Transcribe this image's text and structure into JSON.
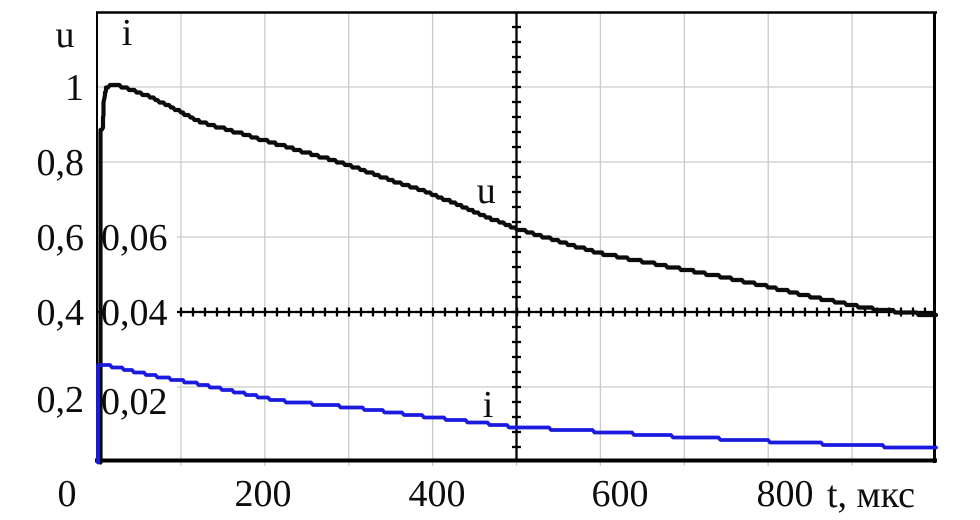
{
  "chart_data": {
    "type": "line",
    "title": "",
    "x_axis": {
      "title": "t, мкс",
      "tick_labels": [
        "0",
        "200",
        "400",
        "600",
        "800"
      ],
      "tick_values": [
        0,
        200,
        400,
        600,
        800
      ],
      "range": [
        0,
        1000
      ],
      "grid_step": 100
    },
    "y_axis_u": {
      "title": "u",
      "tick_labels": [
        "1",
        "0,8",
        "0,6",
        "0,4",
        "0,2"
      ],
      "tick_values": [
        1,
        0.8,
        0.6,
        0.4,
        0.2
      ],
      "range": [
        0,
        1.2
      ],
      "grid_step": 0.2
    },
    "y_axis_i": {
      "title": "i",
      "tick_labels": [
        "0,06",
        "0,04",
        "0,02"
      ],
      "tick_values": [
        0.06,
        0.04,
        0.02
      ],
      "range": [
        0,
        0.12
      ]
    },
    "axes_cross_at": {
      "t": 500,
      "u": 0.4,
      "i": 0.04
    },
    "grid": {
      "on": true,
      "color": "#c6cdc5"
    },
    "colors": {
      "u_curve": "#0c0c0c",
      "i_curve": "#1b1be0",
      "axis": "#000000",
      "text": "#0d0d0d",
      "background": "#ffffff"
    },
    "legend": "inline labels on curves",
    "series": [
      {
        "name": "u",
        "scale": "u",
        "color_key": "u_curve",
        "inline_label": "u",
        "inline_label_at": {
          "t": 464,
          "value": 0.725
        },
        "points": [
          [
            4,
            0
          ],
          [
            4,
            0.885
          ],
          [
            7,
            0.89
          ],
          [
            8,
            0.962
          ],
          [
            11,
            0.999
          ],
          [
            20,
            1.008
          ],
          [
            63,
            0.975
          ],
          [
            123,
            0.907
          ],
          [
            198,
            0.859
          ],
          [
            242,
            0.83
          ],
          [
            300,
            0.792
          ],
          [
            350,
            0.752
          ],
          [
            397,
            0.717
          ],
          [
            445,
            0.672
          ],
          [
            496,
            0.625
          ],
          [
            547,
            0.591
          ],
          [
            597,
            0.558
          ],
          [
            648,
            0.536
          ],
          [
            696,
            0.515
          ],
          [
            743,
            0.495
          ],
          [
            795,
            0.47
          ],
          [
            839,
            0.447
          ],
          [
            875,
            0.43
          ],
          [
            919,
            0.41
          ],
          [
            958,
            0.4
          ],
          [
            1000,
            0.39
          ]
        ]
      },
      {
        "name": "i",
        "scale": "i",
        "color_key": "i_curve",
        "inline_label": "i",
        "inline_label_at": {
          "t": 466,
          "value": 0.0155
        },
        "points": [
          [
            1,
            0
          ],
          [
            1,
            0.0259
          ],
          [
            6,
            0.0261
          ],
          [
            63,
            0.0232
          ],
          [
            123,
            0.0207
          ],
          [
            218,
            0.0163
          ],
          [
            302,
            0.0146
          ],
          [
            397,
            0.012
          ],
          [
            496,
            0.0094
          ],
          [
            600,
            0.0081
          ],
          [
            696,
            0.0067
          ],
          [
            795,
            0.0056
          ],
          [
            898,
            0.0045
          ],
          [
            1000,
            0.0037
          ]
        ]
      }
    ]
  }
}
